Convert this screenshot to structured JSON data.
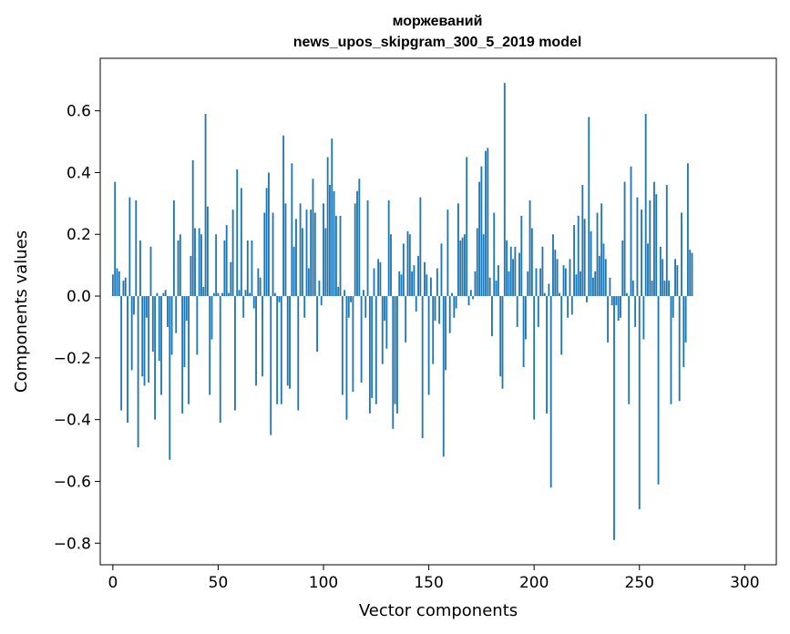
{
  "chart_data": {
    "type": "bar",
    "title_line1": "моржеваний",
    "title_line2": "news_upos_skipgram_300_5_2019 model",
    "xlabel": "Vector components",
    "ylabel": "Components values",
    "xlim": [
      -6,
      315
    ],
    "ylim": [
      -0.87,
      0.77
    ],
    "xticks": [
      0,
      50,
      100,
      150,
      200,
      250,
      300
    ],
    "xtick_labels": [
      "0",
      "50",
      "100",
      "150",
      "200",
      "250",
      "300"
    ],
    "yticks": [
      -0.8,
      -0.6,
      -0.4,
      -0.2,
      0.0,
      0.2,
      0.4,
      0.6
    ],
    "ytick_labels": [
      "−0.8",
      "−0.6",
      "−0.4",
      "−0.2",
      "0.0",
      "0.2",
      "0.4",
      "0.6"
    ],
    "bar_color": "#1f77b4",
    "values": [
      0.07,
      0.37,
      0.09,
      0.08,
      -0.37,
      0.05,
      0.06,
      -0.41,
      0.32,
      -0.24,
      -0.06,
      0.31,
      -0.49,
      0.18,
      -0.26,
      -0.29,
      -0.07,
      -0.28,
      0.16,
      -0.18,
      -0.4,
      0.01,
      -0.21,
      -0.32,
      0.01,
      0.02,
      -0.1,
      -0.53,
      -0.19,
      0.31,
      -0.12,
      0.18,
      0.2,
      -0.38,
      -0.23,
      -0.08,
      -0.35,
      0.13,
      0.44,
      0.22,
      -0.19,
      0.22,
      0.2,
      0.03,
      0.59,
      0.29,
      -0.32,
      -0.14,
      0.01,
      0.2,
      0.01,
      -0.41,
      0.01,
      0.18,
      0.23,
      0.01,
      0.11,
      0.28,
      -0.37,
      0.41,
      0.02,
      0.35,
      -0.07,
      0.02,
      0.18,
      0.01,
      0.18,
      -0.04,
      -0.29,
      0.09,
      0.06,
      -0.26,
      0.27,
      0.35,
      0.4,
      -0.45,
      0.27,
      0.01,
      -0.35,
      -0.02,
      -0.35,
      0.52,
      0.3,
      -0.29,
      -0.3,
      0.43,
      0.16,
      0.25,
      -0.37,
      0.3,
      0.22,
      -0.07,
      0.28,
      0.09,
      0.28,
      0.38,
      0.27,
      -0.18,
      0.05,
      -0.03,
      0.3,
      0.22,
      0.45,
      0.36,
      0.51,
      0.34,
      0.26,
      0.03,
      0.26,
      -0.32,
      0.02,
      -0.4,
      -0.07,
      -0.02,
      -0.31,
      0.3,
      0.34,
      0.38,
      -0.28,
      0.02,
      -0.07,
      0.31,
      -0.38,
      -0.33,
      0.09,
      -0.35,
      0.12,
      0.11,
      -0.22,
      -0.08,
      -0.17,
      0.31,
      0.2,
      -0.43,
      -0.35,
      -0.38,
      0.08,
      0.07,
      0.17,
      -0.15,
      0.21,
      0.2,
      0.08,
      0.1,
      -0.05,
      0.13,
      0.32,
      -0.46,
      0.11,
      0.07,
      -0.32,
      0.06,
      -0.22,
      -0.08,
      0.09,
      -0.09,
      0.17,
      -0.52,
      -0.24,
      0.28,
      -0.12,
      0.01,
      -0.07,
      -0.04,
      0.3,
      0.18,
      0.19,
      0.2,
      0.45,
      -0.03,
      0.02,
      -0.01,
      0.08,
      0.22,
      0.37,
      0.42,
      0.2,
      0.47,
      0.48,
      0.06,
      -0.13,
      0.27,
      0.05,
      0.1,
      -0.26,
      -0.3,
      0.69,
      0.18,
      0.08,
      0.16,
      0.12,
      0.16,
      -0.1,
      0.14,
      0.26,
      -0.23,
      -0.14,
      0.08,
      0.31,
      0.22,
      -0.4,
      0.09,
      -0.1,
      0.09,
      0.16,
      0.01,
      -0.38,
      0.04,
      -0.62,
      0.2,
      0.15,
      0.12,
      0.01,
      -0.19,
      0.1,
      0.09,
      -0.07,
      0.12,
      -0.06,
      0.23,
      0.07,
      0.26,
      0.08,
      0.36,
      0.25,
      -0.02,
      0.58,
      0.21,
      0.06,
      0.08,
      0.27,
      0.13,
      0.3,
      0.17,
      0.12,
      -0.15,
      0.06,
      -0.03,
      -0.79,
      -0.03,
      -0.08,
      -0.07,
      0.18,
      0.37,
      0.01,
      -0.35,
      0.42,
      0.05,
      -0.1,
      0.32,
      -0.69,
      0.28,
      -0.14,
      0.59,
      0.17,
      0.31,
      0.05,
      0.37,
      0.33,
      -0.61,
      0.16,
      0.12,
      0.05,
      0.36,
      0.05,
      -0.35,
      -0.07,
      0.12,
      0.1,
      -0.34,
      0.27,
      -0.23,
      -0.15,
      0.43,
      0.15,
      0.14
    ]
  }
}
